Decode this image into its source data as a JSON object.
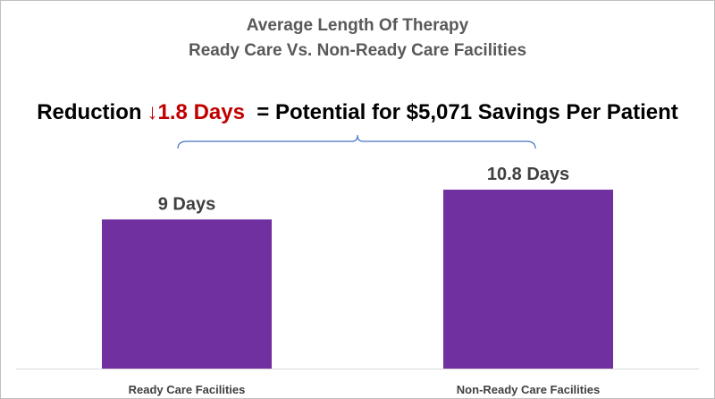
{
  "chart_data": {
    "type": "bar",
    "title": "Average Length Of Therapy",
    "subtitle": "Ready Care Vs. Non-Ready Care Facilities",
    "categories": [
      "Ready Care Facilities",
      "Non-Ready Care Facilities"
    ],
    "values": [
      9,
      10.8
    ],
    "data_labels": [
      "9 Days",
      "10.8 Days"
    ],
    "unit": "Days",
    "xlabel": "",
    "ylabel": "",
    "ylim": [
      0,
      12.6
    ],
    "grid": false,
    "legend": "none",
    "bar_color": "#7030a0"
  },
  "annotation": {
    "prefix": "Reduction",
    "arrow": "↓",
    "highlight": "1.8 Days",
    "suffix": "= Potential for $5,071 Savings Per Patient",
    "highlight_color": "#c00000",
    "bracket_color": "#4472c4"
  }
}
